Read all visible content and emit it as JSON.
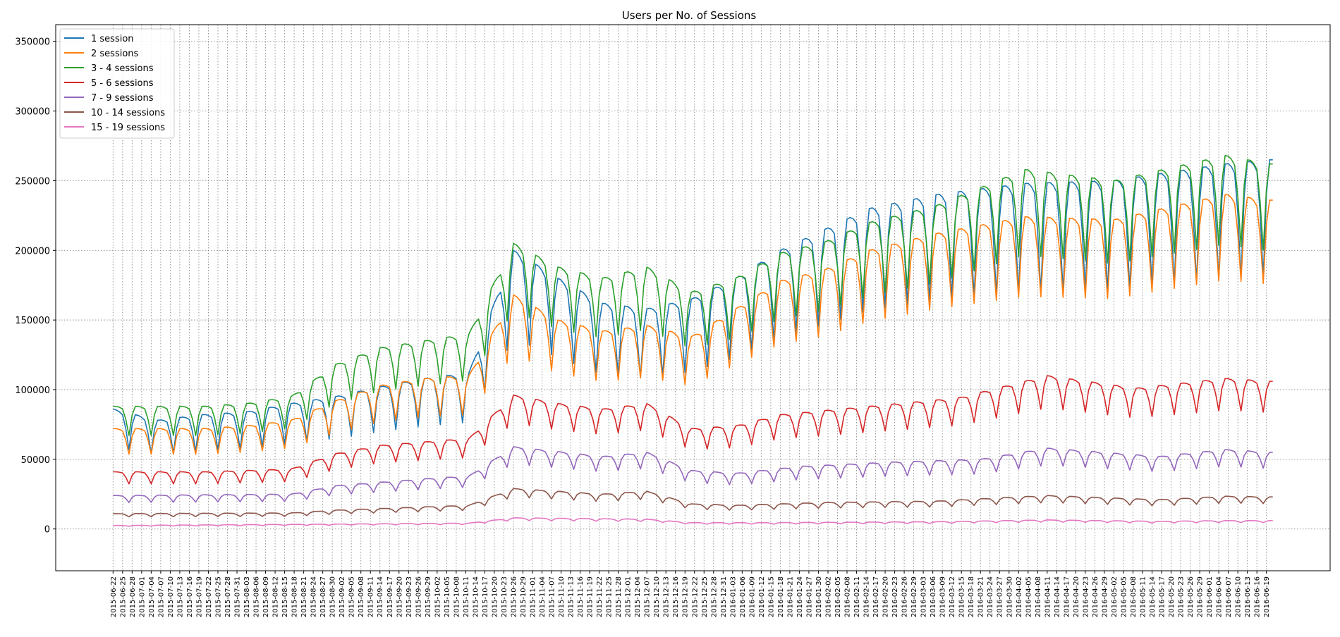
{
  "chart_data": {
    "type": "line",
    "title": "Users per No. of Sessions",
    "xlabel": "",
    "ylabel": "",
    "x_start": "2015-06-22",
    "x_end": "2016-06-21",
    "ylim": [
      -30000,
      362000
    ],
    "yticks": [
      0,
      50000,
      100000,
      150000,
      200000,
      250000,
      300000,
      350000
    ],
    "grid": true,
    "grid_style": "dotted",
    "legend_placement": "top-left",
    "xtick_labels": [
      "2015-06-22",
      "2015-06-25",
      "2015-06-28",
      "2015-07-01",
      "2015-07-04",
      "2015-07-07",
      "2015-07-10",
      "2015-07-13",
      "2015-07-16",
      "2015-07-19",
      "2015-07-22",
      "2015-07-25",
      "2015-07-28",
      "2015-07-31",
      "2015-08-03",
      "2015-08-06",
      "2015-08-09",
      "2015-08-12",
      "2015-08-15",
      "2015-08-18",
      "2015-08-21",
      "2015-08-24",
      "2015-08-27",
      "2015-08-30",
      "2015-09-02",
      "2015-09-05",
      "2015-09-08",
      "2015-09-11",
      "2015-09-14",
      "2015-09-17",
      "2015-09-20",
      "2015-09-23",
      "2015-09-26",
      "2015-09-29",
      "2015-10-02",
      "2015-10-05",
      "2015-10-08",
      "2015-10-11",
      "2015-10-14",
      "2015-10-17",
      "2015-10-20",
      "2015-10-23",
      "2015-10-26",
      "2015-10-29",
      "2015-11-01",
      "2015-11-04",
      "2015-11-07",
      "2015-11-10",
      "2015-11-13",
      "2015-11-16",
      "2015-11-19",
      "2015-11-22",
      "2015-11-25",
      "2015-11-28",
      "2015-12-01",
      "2015-12-04",
      "2015-12-07",
      "2015-12-10",
      "2015-12-13",
      "2015-12-16",
      "2015-12-19",
      "2015-12-22",
      "2015-12-25",
      "2015-12-28",
      "2015-12-31",
      "2016-01-03",
      "2016-01-06",
      "2016-01-09",
      "2016-01-12",
      "2016-01-15",
      "2016-01-18",
      "2016-01-21",
      "2016-01-24",
      "2016-01-27",
      "2016-01-30",
      "2016-02-02",
      "2016-02-05",
      "2016-02-08",
      "2016-02-11",
      "2016-02-14",
      "2016-02-17",
      "2016-02-20",
      "2016-02-23",
      "2016-02-26",
      "2016-02-29",
      "2016-03-03",
      "2016-03-06",
      "2016-03-09",
      "2016-03-12",
      "2016-03-15",
      "2016-03-18",
      "2016-03-21",
      "2016-03-24",
      "2016-03-27",
      "2016-03-30",
      "2016-04-02",
      "2016-04-05",
      "2016-04-08",
      "2016-04-11",
      "2016-04-14",
      "2016-04-17",
      "2016-04-20",
      "2016-04-23",
      "2016-04-26",
      "2016-04-29",
      "2016-05-02",
      "2016-05-05",
      "2016-05-08",
      "2016-05-11",
      "2016-05-14",
      "2016-05-17",
      "2016-05-20",
      "2016-05-23",
      "2016-05-26",
      "2016-05-29",
      "2016-06-01",
      "2016-06-04",
      "2016-06-07",
      "2016-06-10",
      "2016-06-13",
      "2016-06-16",
      "2016-06-19"
    ],
    "series_info": [
      {
        "name": "1 session",
        "color": "#1f77b4"
      },
      {
        "name": "2 sessions",
        "color": "#ff7f0e"
      },
      {
        "name": "3 - 4  sessions",
        "color": "#2ca02c"
      },
      {
        "name": "5 - 6 sessions",
        "color": "#d62728"
      },
      {
        "name": "7 - 9 sessions",
        "color": "#9467bd"
      },
      {
        "name": "10 - 14 sessions",
        "color": "#8c564b"
      },
      {
        "name": "15 - 19 sessions",
        "color": "#e377c2"
      }
    ],
    "weekly_pattern": [
      1.0,
      1.0,
      0.99,
      0.97,
      0.85,
      0.66,
      0.9
    ],
    "series": [
      {
        "name": "1 session",
        "color": "#1f77b4",
        "day_of_week_offset": 0,
        "dip_factor": 0.93,
        "weekly_base": [
          {
            "x": "2015-06-22",
            "y": 86000
          },
          {
            "x": "2015-07-06",
            "y": 78000
          },
          {
            "x": "2015-07-20",
            "y": 82000
          },
          {
            "x": "2015-08-03",
            "y": 84000
          },
          {
            "x": "2015-08-17",
            "y": 90000
          },
          {
            "x": "2015-08-31",
            "y": 95000
          },
          {
            "x": "2015-09-14",
            "y": 102000
          },
          {
            "x": "2015-09-28",
            "y": 108000
          },
          {
            "x": "2015-10-12",
            "y": 112000
          },
          {
            "x": "2015-10-26",
            "y": 200000
          },
          {
            "x": "2015-11-09",
            "y": 180000
          },
          {
            "x": "2015-11-23",
            "y": 162000
          },
          {
            "x": "2015-12-07",
            "y": 158000
          },
          {
            "x": "2015-12-21",
            "y": 165000
          },
          {
            "x": "2016-01-04",
            "y": 180000
          },
          {
            "x": "2016-01-18",
            "y": 200000
          },
          {
            "x": "2016-02-01",
            "y": 215000
          },
          {
            "x": "2016-02-15",
            "y": 230000
          },
          {
            "x": "2016-03-07",
            "y": 240000
          },
          {
            "x": "2016-04-04",
            "y": 248000
          },
          {
            "x": "2016-05-02",
            "y": 250000
          },
          {
            "x": "2016-06-06",
            "y": 262000
          },
          {
            "x": "2016-06-20",
            "y": 265000
          }
        ]
      },
      {
        "name": "2 sessions",
        "color": "#ff7f0e",
        "day_of_week_offset": 0,
        "dip_factor": 0.75,
        "weekly_base": [
          {
            "x": "2015-06-22",
            "y": 72000
          },
          {
            "x": "2015-07-06",
            "y": 72000
          },
          {
            "x": "2015-07-20",
            "y": 72000
          },
          {
            "x": "2015-08-03",
            "y": 74000
          },
          {
            "x": "2015-08-17",
            "y": 78000
          },
          {
            "x": "2015-08-31",
            "y": 92000
          },
          {
            "x": "2015-09-14",
            "y": 103000
          },
          {
            "x": "2015-09-28",
            "y": 108000
          },
          {
            "x": "2015-10-12",
            "y": 110000
          },
          {
            "x": "2015-10-26",
            "y": 168000
          },
          {
            "x": "2015-11-09",
            "y": 150000
          },
          {
            "x": "2015-11-23",
            "y": 142000
          },
          {
            "x": "2015-12-07",
            "y": 146000
          },
          {
            "x": "2015-12-21",
            "y": 138000
          },
          {
            "x": "2016-01-04",
            "y": 158000
          },
          {
            "x": "2016-01-18",
            "y": 178000
          },
          {
            "x": "2016-02-01",
            "y": 186000
          },
          {
            "x": "2016-02-15",
            "y": 200000
          },
          {
            "x": "2016-03-07",
            "y": 212000
          },
          {
            "x": "2016-04-04",
            "y": 224000
          },
          {
            "x": "2016-05-02",
            "y": 222000
          },
          {
            "x": "2016-06-06",
            "y": 240000
          },
          {
            "x": "2016-06-20",
            "y": 236000
          }
        ]
      },
      {
        "name": "3 - 4  sessions",
        "color": "#2ca02c",
        "day_of_week_offset": 0,
        "dip_factor": 0.7,
        "weekly_base": [
          {
            "x": "2015-06-22",
            "y": 88000
          },
          {
            "x": "2015-07-06",
            "y": 88000
          },
          {
            "x": "2015-07-20",
            "y": 88000
          },
          {
            "x": "2015-08-03",
            "y": 90000
          },
          {
            "x": "2015-08-17",
            "y": 95000
          },
          {
            "x": "2015-08-31",
            "y": 118000
          },
          {
            "x": "2015-09-14",
            "y": 130000
          },
          {
            "x": "2015-09-28",
            "y": 135000
          },
          {
            "x": "2015-10-12",
            "y": 140000
          },
          {
            "x": "2015-10-26",
            "y": 205000
          },
          {
            "x": "2015-11-09",
            "y": 188000
          },
          {
            "x": "2015-11-23",
            "y": 180000
          },
          {
            "x": "2015-12-07",
            "y": 188000
          },
          {
            "x": "2015-12-21",
            "y": 170000
          },
          {
            "x": "2016-01-04",
            "y": 180000
          },
          {
            "x": "2016-01-18",
            "y": 198000
          },
          {
            "x": "2016-02-01",
            "y": 206000
          },
          {
            "x": "2016-02-15",
            "y": 220000
          },
          {
            "x": "2016-03-07",
            "y": 232000
          },
          {
            "x": "2016-04-04",
            "y": 258000
          },
          {
            "x": "2016-05-02",
            "y": 250000
          },
          {
            "x": "2016-06-06",
            "y": 268000
          },
          {
            "x": "2016-06-20",
            "y": 262000
          }
        ]
      },
      {
        "name": "5 - 6 sessions",
        "color": "#d62728",
        "day_of_week_offset": 0,
        "dip_factor": 0.62,
        "weekly_base": [
          {
            "x": "2015-06-22",
            "y": 41000
          },
          {
            "x": "2015-07-20",
            "y": 41000
          },
          {
            "x": "2015-08-17",
            "y": 43000
          },
          {
            "x": "2015-08-31",
            "y": 54000
          },
          {
            "x": "2015-09-14",
            "y": 60000
          },
          {
            "x": "2015-10-12",
            "y": 65000
          },
          {
            "x": "2015-10-26",
            "y": 96000
          },
          {
            "x": "2015-11-09",
            "y": 90000
          },
          {
            "x": "2015-11-23",
            "y": 86000
          },
          {
            "x": "2015-12-07",
            "y": 90000
          },
          {
            "x": "2015-12-21",
            "y": 72000
          },
          {
            "x": "2016-01-04",
            "y": 74000
          },
          {
            "x": "2016-01-18",
            "y": 82000
          },
          {
            "x": "2016-02-15",
            "y": 88000
          },
          {
            "x": "2016-03-14",
            "y": 94000
          },
          {
            "x": "2016-04-11",
            "y": 110000
          },
          {
            "x": "2016-05-09",
            "y": 101000
          },
          {
            "x": "2016-06-06",
            "y": 108000
          },
          {
            "x": "2016-06-20",
            "y": 106000
          }
        ]
      },
      {
        "name": "7 - 9 sessions",
        "color": "#9467bd",
        "day_of_week_offset": 0,
        "dip_factor": 0.62,
        "weekly_base": [
          {
            "x": "2015-06-22",
            "y": 24000
          },
          {
            "x": "2015-08-17",
            "y": 25000
          },
          {
            "x": "2015-08-31",
            "y": 31000
          },
          {
            "x": "2015-09-28",
            "y": 36000
          },
          {
            "x": "2015-10-12",
            "y": 38000
          },
          {
            "x": "2015-10-26",
            "y": 59000
          },
          {
            "x": "2015-11-23",
            "y": 52000
          },
          {
            "x": "2015-12-07",
            "y": 55000
          },
          {
            "x": "2015-12-21",
            "y": 42000
          },
          {
            "x": "2016-01-04",
            "y": 40000
          },
          {
            "x": "2016-01-25",
            "y": 45000
          },
          {
            "x": "2016-02-22",
            "y": 48000
          },
          {
            "x": "2016-03-21",
            "y": 50000
          },
          {
            "x": "2016-04-11",
            "y": 58000
          },
          {
            "x": "2016-05-16",
            "y": 52000
          },
          {
            "x": "2016-06-06",
            "y": 57000
          },
          {
            "x": "2016-06-20",
            "y": 55000
          }
        ]
      },
      {
        "name": "10 - 14 sessions",
        "color": "#8c564b",
        "day_of_week_offset": 0,
        "dip_factor": 0.62,
        "weekly_base": [
          {
            "x": "2015-06-22",
            "y": 11000
          },
          {
            "x": "2015-08-17",
            "y": 11500
          },
          {
            "x": "2015-08-31",
            "y": 13500
          },
          {
            "x": "2015-10-12",
            "y": 17000
          },
          {
            "x": "2015-10-26",
            "y": 29000
          },
          {
            "x": "2015-11-23",
            "y": 25000
          },
          {
            "x": "2015-12-07",
            "y": 27000
          },
          {
            "x": "2015-12-21",
            "y": 18000
          },
          {
            "x": "2016-01-04",
            "y": 17000
          },
          {
            "x": "2016-02-01",
            "y": 19000
          },
          {
            "x": "2016-03-07",
            "y": 20000
          },
          {
            "x": "2016-04-11",
            "y": 24000
          },
          {
            "x": "2016-05-16",
            "y": 21000
          },
          {
            "x": "2016-06-06",
            "y": 23500
          },
          {
            "x": "2016-06-20",
            "y": 23000
          }
        ]
      },
      {
        "name": "15 - 19 sessions",
        "color": "#e377c2",
        "day_of_week_offset": 0,
        "dip_factor": 0.7,
        "weekly_base": [
          {
            "x": "2015-06-22",
            "y": 2500
          },
          {
            "x": "2015-08-31",
            "y": 3500
          },
          {
            "x": "2015-10-12",
            "y": 4200
          },
          {
            "x": "2015-10-26",
            "y": 8000
          },
          {
            "x": "2015-12-07",
            "y": 7000
          },
          {
            "x": "2015-12-21",
            "y": 4500
          },
          {
            "x": "2016-01-11",
            "y": 4500
          },
          {
            "x": "2016-03-07",
            "y": 5200
          },
          {
            "x": "2016-04-11",
            "y": 6500
          },
          {
            "x": "2016-05-16",
            "y": 5500
          },
          {
            "x": "2016-06-06",
            "y": 6000
          },
          {
            "x": "2016-06-20",
            "y": 6000
          }
        ]
      }
    ]
  }
}
